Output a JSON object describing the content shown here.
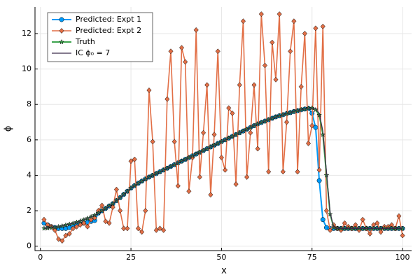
{
  "chart_data": {
    "type": "line",
    "xlabel": "x",
    "ylabel": "ϕ",
    "xlim": [
      -1.5,
      102.5
    ],
    "ylim": [
      -0.25,
      13.5
    ],
    "xticks": [
      0,
      25,
      50,
      75,
      100
    ],
    "yticks": [
      0,
      2,
      4,
      6,
      8,
      10,
      12
    ],
    "grid": true,
    "legend": "top-left",
    "x": [
      1,
      2,
      3,
      4,
      5,
      6,
      7,
      8,
      9,
      10,
      11,
      12,
      13,
      14,
      15,
      16,
      17,
      18,
      19,
      20,
      21,
      22,
      23,
      24,
      25,
      26,
      27,
      28,
      29,
      30,
      31,
      32,
      33,
      34,
      35,
      36,
      37,
      38,
      39,
      40,
      41,
      42,
      43,
      44,
      45,
      46,
      47,
      48,
      49,
      50,
      51,
      52,
      53,
      54,
      55,
      56,
      57,
      58,
      59,
      60,
      61,
      62,
      63,
      64,
      65,
      66,
      67,
      68,
      69,
      70,
      71,
      72,
      73,
      74,
      75,
      76,
      77,
      78,
      79,
      80,
      81,
      82,
      83,
      84,
      85,
      86,
      87,
      88,
      89,
      90,
      91,
      92,
      93,
      94,
      95,
      96,
      97,
      98,
      99,
      100
    ],
    "series": [
      {
        "name": "Predicted: Expt 1",
        "color": "#009af9",
        "marker": "circle",
        "values": [
          1.3,
          1.2,
          1.1,
          1.05,
          1.0,
          1.0,
          1.0,
          1.05,
          1.1,
          1.2,
          1.25,
          1.3,
          1.35,
          1.4,
          1.45,
          1.87,
          2.0,
          2.13,
          2.27,
          2.4,
          2.57,
          2.74,
          2.92,
          3.1,
          3.28,
          3.42,
          3.55,
          3.67,
          3.79,
          3.9,
          4.0,
          4.1,
          4.2,
          4.3,
          4.4,
          4.5,
          4.6,
          4.7,
          4.8,
          4.9,
          5.0,
          5.1,
          5.2,
          5.3,
          5.4,
          5.5,
          5.6,
          5.7,
          5.8,
          5.9,
          6.0,
          6.1,
          6.2,
          6.3,
          6.4,
          6.5,
          6.6,
          6.7,
          6.8,
          6.9,
          6.98,
          7.06,
          7.14,
          7.22,
          7.3,
          7.36,
          7.42,
          7.48,
          7.54,
          7.6,
          7.65,
          7.7,
          7.74,
          7.78,
          7.5,
          6.7,
          3.7,
          1.5,
          1.05,
          1.0,
          1.0,
          1.0,
          1.0,
          1.0,
          1.0,
          1.0,
          1.0,
          1.0,
          1.0,
          1.0,
          1.0,
          1.0,
          1.0,
          1.0,
          1.0,
          1.0,
          1.0,
          1.0,
          1.0,
          1.0
        ]
      },
      {
        "name": "Predicted: Expt 2",
        "color": "#e26f46",
        "marker": "diamond",
        "values": [
          1.5,
          1.2,
          1.1,
          0.9,
          0.4,
          0.3,
          0.6,
          0.7,
          1.0,
          1.1,
          1.2,
          1.3,
          1.1,
          1.5,
          1.6,
          2.0,
          2.3,
          1.4,
          1.3,
          2.2,
          3.2,
          2.0,
          1.0,
          1.0,
          4.8,
          4.9,
          1.0,
          0.8,
          2.0,
          8.8,
          5.9,
          0.9,
          1.0,
          0.9,
          8.3,
          11.0,
          5.9,
          3.4,
          11.2,
          10.4,
          3.1,
          5.0,
          12.2,
          3.9,
          6.4,
          9.1,
          2.9,
          6.3,
          11.0,
          5.0,
          4.3,
          7.8,
          7.5,
          3.5,
          9.1,
          12.7,
          3.9,
          6.4,
          9.1,
          5.5,
          13.1,
          10.2,
          4.2,
          11.5,
          9.4,
          13.1,
          4.2,
          7.0,
          11.0,
          12.7,
          4.2,
          9.0,
          12.0,
          5.8,
          6.8,
          12.3,
          4.3,
          12.4,
          2.0,
          0.9,
          1.2,
          1.0,
          0.9,
          1.3,
          1.1,
          1.0,
          1.2,
          0.9,
          1.5,
          1.0,
          0.7,
          1.2,
          1.3,
          0.8,
          1.1,
          1.1,
          1.2,
          1.0,
          1.7,
          0.6
        ]
      },
      {
        "name": "Truth",
        "color": "#3da44d",
        "marker": "star",
        "values": [
          1.0,
          1.02,
          1.04,
          1.06,
          1.1,
          1.14,
          1.19,
          1.24,
          1.29,
          1.35,
          1.42,
          1.49,
          1.57,
          1.66,
          1.75,
          1.87,
          2.0,
          2.13,
          2.27,
          2.4,
          2.57,
          2.74,
          2.92,
          3.1,
          3.28,
          3.42,
          3.55,
          3.67,
          3.79,
          3.9,
          4.0,
          4.1,
          4.2,
          4.3,
          4.4,
          4.5,
          4.6,
          4.7,
          4.8,
          4.9,
          5.0,
          5.1,
          5.2,
          5.3,
          5.4,
          5.5,
          5.6,
          5.7,
          5.8,
          5.9,
          6.0,
          6.1,
          6.2,
          6.3,
          6.4,
          6.5,
          6.6,
          6.7,
          6.8,
          6.9,
          6.98,
          7.06,
          7.14,
          7.22,
          7.3,
          7.36,
          7.42,
          7.48,
          7.54,
          7.6,
          7.65,
          7.7,
          7.74,
          7.78,
          7.8,
          7.7,
          7.4,
          6.3,
          4.0,
          1.8,
          1.05,
          1.0,
          1.0,
          1.0,
          1.0,
          1.0,
          1.0,
          1.0,
          1.0,
          1.0,
          1.0,
          1.0,
          1.0,
          1.0,
          1.0,
          1.0,
          1.0,
          1.0,
          1.0,
          1.0
        ]
      },
      {
        "name": "IC ϕ₀ = 7",
        "color": "#3b2a4a",
        "marker": "none",
        "values": [
          1.0,
          1.02,
          1.04,
          1.06,
          1.1,
          1.14,
          1.19,
          1.24,
          1.29,
          1.35,
          1.42,
          1.49,
          1.57,
          1.66,
          1.75,
          1.87,
          2.0,
          2.13,
          2.27,
          2.4,
          2.57,
          2.74,
          2.92,
          3.1,
          3.28,
          3.42,
          3.55,
          3.67,
          3.79,
          3.9,
          4.0,
          4.1,
          4.2,
          4.3,
          4.4,
          4.5,
          4.6,
          4.7,
          4.8,
          4.9,
          5.0,
          5.1,
          5.2,
          5.3,
          5.4,
          5.5,
          5.6,
          5.7,
          5.8,
          5.9,
          6.0,
          6.1,
          6.2,
          6.3,
          6.4,
          6.5,
          6.6,
          6.7,
          6.8,
          6.9,
          6.98,
          7.06,
          7.14,
          7.22,
          7.3,
          7.36,
          7.42,
          7.48,
          7.54,
          7.6,
          7.65,
          7.7,
          7.74,
          7.78,
          7.8,
          7.75,
          7.5,
          6.5,
          4.2,
          1.9,
          1.05,
          1.0,
          1.0,
          1.0,
          1.0,
          1.0,
          1.0,
          1.0,
          1.0,
          1.0,
          1.0,
          1.0,
          1.0,
          1.0,
          1.0,
          1.0,
          1.0,
          1.0,
          1.0,
          1.0
        ]
      }
    ]
  }
}
